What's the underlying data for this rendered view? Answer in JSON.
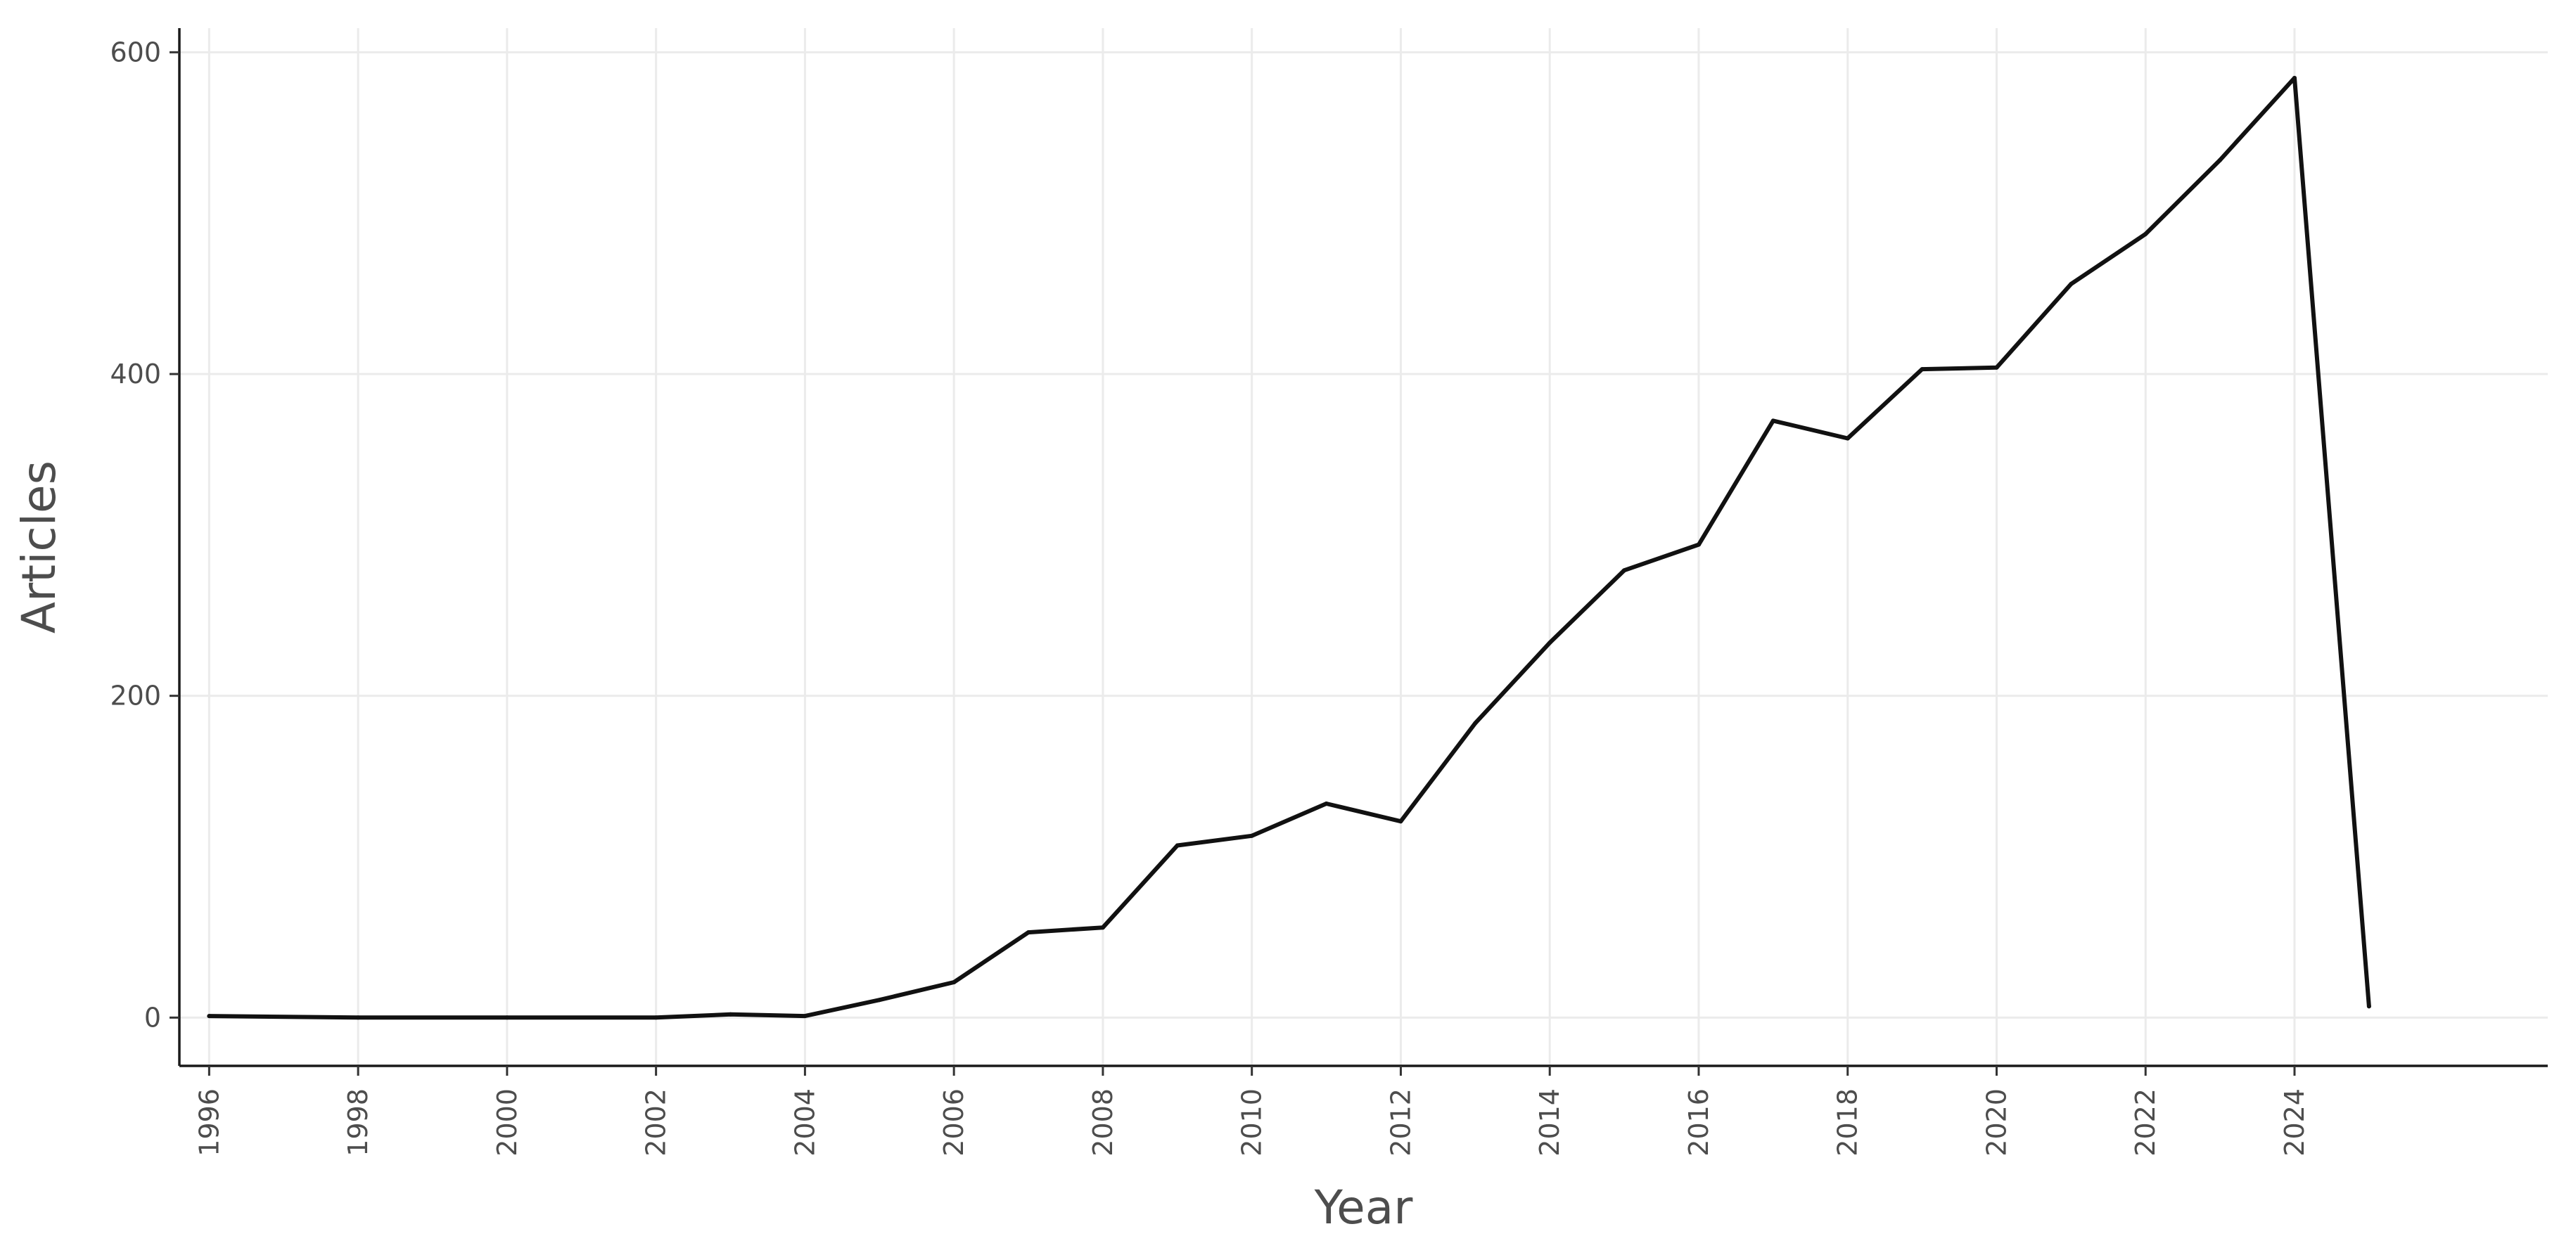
{
  "chart_data": {
    "type": "line",
    "xlabel": "Year",
    "ylabel": "Articles",
    "xlim": [
      1995.6,
      2027.4
    ],
    "ylim": [
      -30,
      615
    ],
    "x_ticks": [
      1996,
      1998,
      2000,
      2002,
      2004,
      2006,
      2008,
      2010,
      2012,
      2014,
      2016,
      2018,
      2020,
      2022,
      2024
    ],
    "y_ticks": [
      0,
      200,
      400,
      600
    ],
    "grid": true,
    "legend": "none",
    "colors": {
      "line": "#111111",
      "grid": "#ebebeb",
      "axis": "#1a1a1a",
      "text": "#4d4d4d"
    },
    "x": [
      1996,
      1998,
      2000,
      2002,
      2003,
      2004,
      2005,
      2006,
      2007,
      2008,
      2009,
      2010,
      2011,
      2012,
      2013,
      2014,
      2015,
      2016,
      2017,
      2018,
      2019,
      2020,
      2021,
      2022,
      2023,
      2024,
      2025
    ],
    "values": [
      1,
      0,
      0,
      0,
      2,
      1,
      11,
      22,
      53,
      56,
      107,
      113,
      133,
      122,
      183,
      233,
      278,
      294,
      371,
      360,
      403,
      404,
      456,
      487,
      533,
      584,
      7
    ]
  }
}
